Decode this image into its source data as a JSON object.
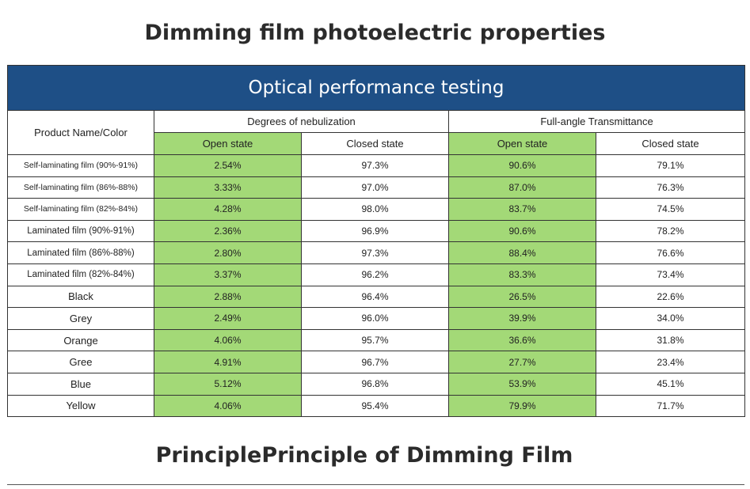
{
  "page_title": "Dimming film photoelectric properties",
  "table": {
    "banner": "Optical performance testing",
    "product_header": "Product Name/Color",
    "groups": [
      {
        "label": "Degrees of nebulization"
      },
      {
        "label": "Full-angle Transmittance"
      }
    ],
    "sub_headers": [
      "Open state",
      "Closed state",
      "Open state",
      "Closed state"
    ],
    "highlight_color": "#a3d977",
    "banner_color": "#1e4f86",
    "rows": [
      {
        "name": "Self-laminating film (90%-91%)",
        "values": [
          "2.54%",
          "97.3%",
          "90.6%",
          "79.1%"
        ]
      },
      {
        "name": "Self-laminating film (86%-88%)",
        "values": [
          "3.33%",
          "97.0%",
          "87.0%",
          "76.3%"
        ]
      },
      {
        "name": "Self-laminating film (82%-84%)",
        "values": [
          "4.28%",
          "98.0%",
          "83.7%",
          "74.5%"
        ]
      },
      {
        "name": "Laminated film (90%-91%)",
        "values": [
          "2.36%",
          "96.9%",
          "90.6%",
          "78.2%"
        ]
      },
      {
        "name": "Laminated film (86%-88%)",
        "values": [
          "2.80%",
          "97.3%",
          "88.4%",
          "76.6%"
        ]
      },
      {
        "name": "Laminated film (82%-84%)",
        "values": [
          "3.37%",
          "96.2%",
          "83.3%",
          "73.4%"
        ]
      },
      {
        "name": "Black",
        "values": [
          "2.88%",
          "96.4%",
          "26.5%",
          "22.6%"
        ]
      },
      {
        "name": "Grey",
        "values": [
          "2.49%",
          "96.0%",
          "39.9%",
          "34.0%"
        ]
      },
      {
        "name": "Orange",
        "values": [
          "4.06%",
          "95.7%",
          "36.6%",
          "31.8%"
        ]
      },
      {
        "name": "Gree",
        "values": [
          "4.91%",
          "96.7%",
          "27.7%",
          "23.4%"
        ]
      },
      {
        "name": "Blue",
        "values": [
          "5.12%",
          "96.8%",
          "53.9%",
          "45.1%"
        ]
      },
      {
        "name": "Yellow",
        "values": [
          "4.06%",
          "95.4%",
          "79.9%",
          "71.7%"
        ]
      }
    ]
  },
  "footer_title": "PrinciplePrinciple of Dimming Film"
}
